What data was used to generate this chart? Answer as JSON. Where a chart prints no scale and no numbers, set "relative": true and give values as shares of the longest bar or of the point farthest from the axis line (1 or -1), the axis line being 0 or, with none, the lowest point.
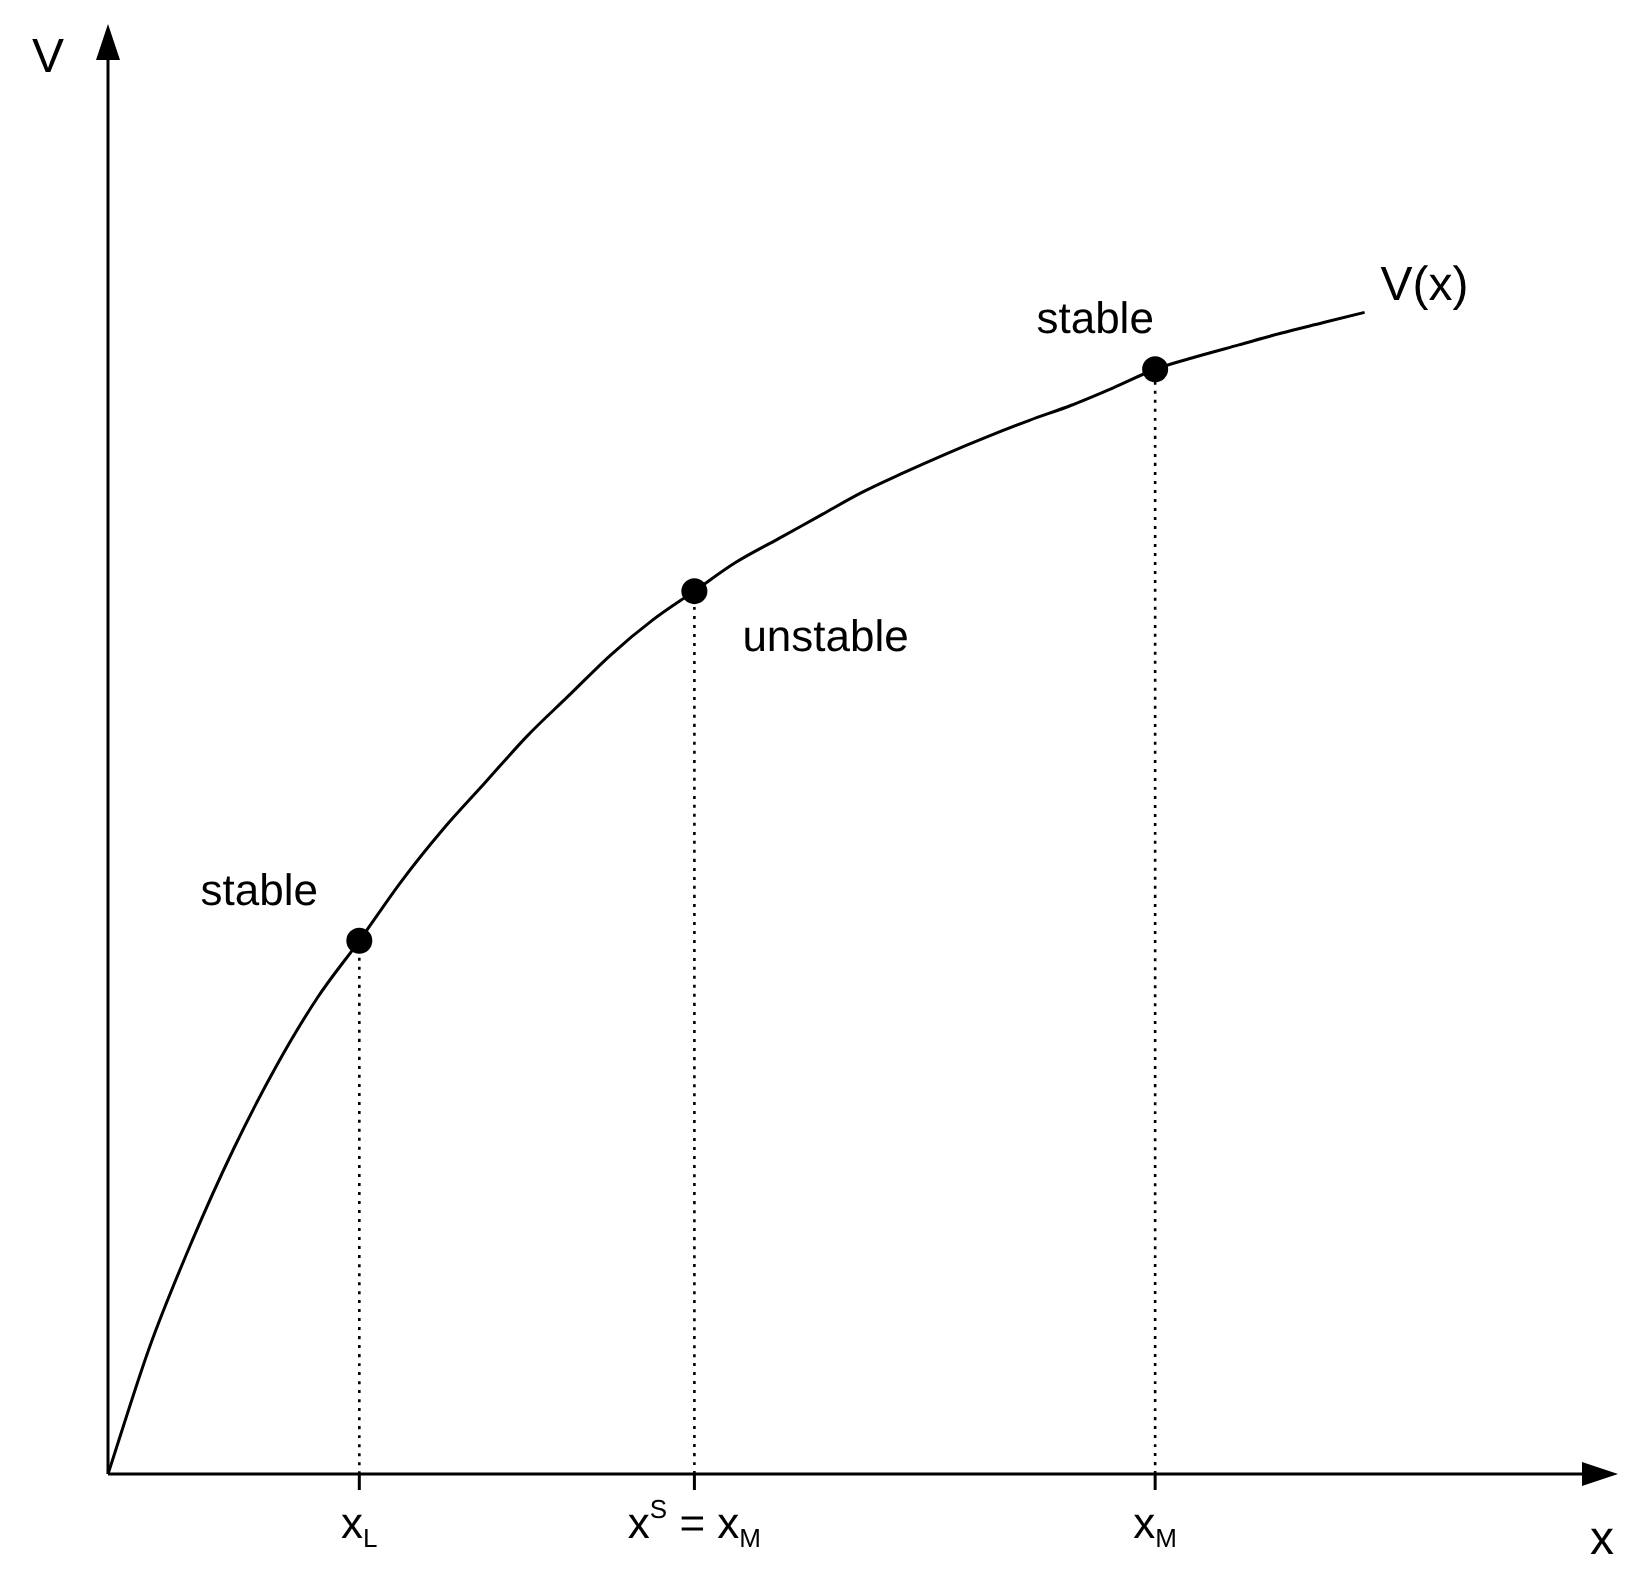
{
  "chart_data": {
    "type": "line",
    "relative": true,
    "xlabel": "x",
    "ylabel": "V",
    "tick_labels": "x",
    "grid": false,
    "legend": false,
    "categories": [
      null,
      null,
      null,
      null,
      null,
      null,
      "x$_{L}$",
      null,
      null,
      null,
      null,
      null,
      null,
      null,
      "x$^{S}$ = x$_{M}$",
      null,
      null,
      null,
      null,
      null,
      null,
      null,
      null,
      null,
      null,
      "x$_{M}$",
      null,
      null,
      null,
      null,
      null,
      null,
      null,
      null,
      null,
      null
    ],
    "series": [
      {
        "name": "V(x)",
        "type": "line",
        "marker": "none",
        "line_style": "solid",
        "color": "#000000",
        "values": [
          0,
          0.11,
          0.2,
          0.28,
          0.35,
          0.41,
          0.459,
          0.51,
          0.555,
          0.595,
          0.635,
          0.67,
          0.705,
          0.735,
          0.76,
          0.785,
          0.805,
          0.825,
          0.845,
          0.862,
          0.878,
          0.893,
          0.907,
          0.92,
          0.935,
          0.951,
          0.962,
          0.972,
          0.982,
          0.991,
          1,
          null,
          null,
          null,
          null,
          null
        ]
      },
      {
        "type": "line",
        "marker": "none",
        "line_style": "dotted",
        "color": "#000000",
        "x": [
          "x$_{L}$",
          "x$_{L}$"
        ],
        "values": [
          0,
          0.459
        ]
      },
      {
        "type": "line",
        "marker": "none",
        "line_style": "dotted",
        "color": "#000000",
        "x": [
          "x$^{S}$ = x$_{M}$",
          "x$^{S}$ = x$_{M}$"
        ],
        "values": [
          0,
          0.76
        ]
      },
      {
        "type": "line",
        "marker": "none",
        "line_style": "dotted",
        "color": "#000000",
        "x": [
          "x$_{M}$",
          "x$_{M}$"
        ],
        "values": [
          0,
          0.951
        ]
      },
      {
        "type": "scatter",
        "marker": "circle",
        "color": "#000000",
        "values": [
          null,
          null,
          null,
          null,
          null,
          null,
          0.459,
          null,
          null,
          null,
          null,
          null,
          null,
          null,
          0.76,
          null,
          null,
          null,
          null,
          null,
          null,
          null,
          null,
          null,
          null,
          0.951,
          null,
          null,
          null,
          null,
          null,
          null,
          null,
          null,
          null,
          null
        ]
      }
    ],
    "annotations": [
      {
        "text": "stable",
        "x": "x$_{L}$",
        "y": 0.459
      },
      {
        "text": "unstable",
        "x": "x$^{S}$ = x$_{M}$",
        "y": 0.76
      },
      {
        "text": "stable",
        "x": "x$_{M}$",
        "y": 0.951
      }
    ]
  }
}
